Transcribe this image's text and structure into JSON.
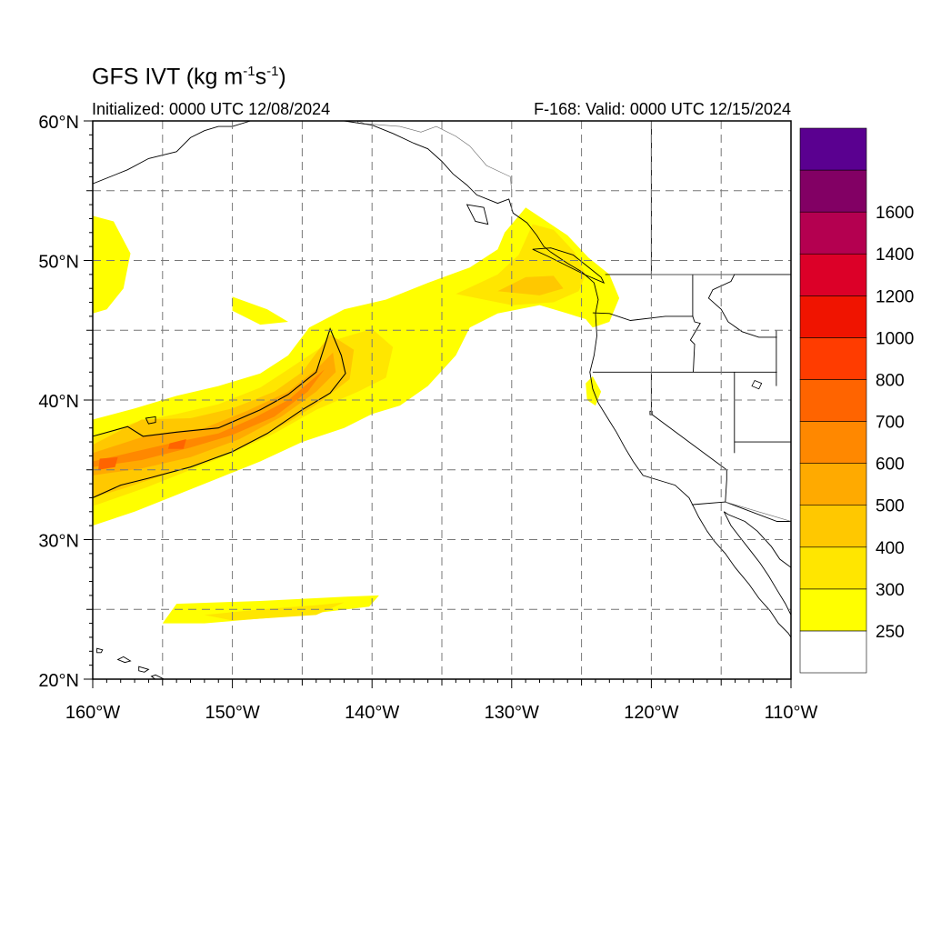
{
  "title": {
    "prefix": "GFS IVT (kg m",
    "sup1": "-1",
    "mid": "s",
    "sup2": "-1",
    "suffix": ")"
  },
  "initialized_label": "Initialized: 0000 UTC 12/08/2024",
  "valid_label": "F-168: Valid: 0000 UTC 12/15/2024",
  "map": {
    "lon_range": [
      -160,
      -110
    ],
    "lat_range": [
      20,
      60
    ],
    "lon_ticks": [
      {
        "value": -160,
        "label": "160°W"
      },
      {
        "value": -150,
        "label": "150°W"
      },
      {
        "value": -140,
        "label": "140°W"
      },
      {
        "value": -130,
        "label": "130°W"
      },
      {
        "value": -120,
        "label": "120°W"
      },
      {
        "value": -110,
        "label": "110°W"
      }
    ],
    "lat_ticks": [
      {
        "value": 20,
        "label": "20°N"
      },
      {
        "value": 30,
        "label": "30°N"
      },
      {
        "value": 40,
        "label": "40°N"
      },
      {
        "value": 50,
        "label": "50°N"
      },
      {
        "value": 60,
        "label": "60°N"
      }
    ],
    "grid": "dashed every 5°",
    "land_fill": "#ffffff",
    "coastline_color": "#000000"
  },
  "colorbar": {
    "levels": [
      {
        "label": "250",
        "color": "#ffff00"
      },
      {
        "label": "300",
        "color": "#ffe600"
      },
      {
        "label": "400",
        "color": "#ffc800"
      },
      {
        "label": "500",
        "color": "#ffaa00"
      },
      {
        "label": "600",
        "color": "#ff8800"
      },
      {
        "label": "700",
        "color": "#ff6400"
      },
      {
        "label": "800",
        "color": "#ff3c00"
      },
      {
        "label": "1000",
        "color": "#f01400"
      },
      {
        "label": "1200",
        "color": "#dc0028"
      },
      {
        "label": "1400",
        "color": "#b40050"
      },
      {
        "label": "1600",
        "color": "#820064"
      },
      {
        "label": "",
        "color": "#5a0090"
      }
    ],
    "below_min_color": "#ffffff"
  },
  "ivt_regions": [
    {
      "level": "250",
      "lonlat": [
        [
          -160,
          38.6
        ],
        [
          -157,
          39.4
        ],
        [
          -154,
          40.3
        ],
        [
          -151,
          41.0
        ],
        [
          -148,
          41.9
        ],
        [
          -146,
          43.2
        ],
        [
          -144.5,
          45.2
        ],
        [
          -142,
          46.5
        ],
        [
          -139,
          47.2
        ],
        [
          -136,
          48.4
        ],
        [
          -133,
          49.5
        ],
        [
          -131,
          50.8
        ],
        [
          -130.5,
          52.0
        ],
        [
          -129,
          53.8
        ],
        [
          -127.5,
          52.8
        ],
        [
          -126,
          51.8
        ],
        [
          -124.5,
          50.2
        ],
        [
          -123,
          49.0
        ],
        [
          -122.3,
          47.3
        ],
        [
          -123,
          45.6
        ],
        [
          -124.2,
          45.2
        ],
        [
          -124.7,
          45.8
        ],
        [
          -126,
          46.2
        ],
        [
          -128,
          46.8
        ],
        [
          -131,
          46.2
        ],
        [
          -133,
          45.2
        ],
        [
          -134,
          43.2
        ],
        [
          -136,
          41.0
        ],
        [
          -138,
          39.6
        ],
        [
          -140,
          39.0
        ],
        [
          -142,
          38.0
        ],
        [
          -145,
          37.0
        ],
        [
          -148,
          35.6
        ],
        [
          -151,
          34.4
        ],
        [
          -154,
          33.2
        ],
        [
          -157,
          32.0
        ],
        [
          -160,
          31.0
        ]
      ]
    },
    {
      "level": "250",
      "lonlat": [
        [
          -160,
          53.2
        ],
        [
          -158.5,
          52.8
        ],
        [
          -157.3,
          50.5
        ],
        [
          -157.8,
          48.0
        ],
        [
          -159,
          46.5
        ],
        [
          -160,
          46.2
        ]
      ]
    },
    {
      "level": "250",
      "lonlat": [
        [
          -154,
          25.4
        ],
        [
          -148,
          25.6
        ],
        [
          -142,
          25.9
        ],
        [
          -139.5,
          26.0
        ],
        [
          -140.2,
          25.2
        ],
        [
          -146,
          24.5
        ],
        [
          -152,
          24.0
        ],
        [
          -155,
          24.0
        ]
      ]
    },
    {
      "level": "250",
      "lonlat": [
        [
          -150,
          47.4
        ],
        [
          -147.5,
          46.5
        ],
        [
          -146,
          45.6
        ],
        [
          -148,
          45.4
        ],
        [
          -150,
          46.4
        ]
      ]
    },
    {
      "level": "250",
      "lonlat": [
        [
          -124.2,
          41.7
        ],
        [
          -123.6,
          40.6
        ],
        [
          -124.0,
          39.6
        ],
        [
          -124.6,
          40.0
        ],
        [
          -124.7,
          41.2
        ]
      ]
    },
    {
      "level": "300",
      "lonlat": [
        [
          -160,
          37.3
        ],
        [
          -157,
          38.4
        ],
        [
          -154,
          39.0
        ],
        [
          -151,
          39.7
        ],
        [
          -148,
          40.9
        ],
        [
          -146,
          42.2
        ],
        [
          -143,
          44.2
        ],
        [
          -140,
          45.1
        ],
        [
          -138.5,
          43.8
        ],
        [
          -139.0,
          41.6
        ],
        [
          -141,
          40.6
        ],
        [
          -144,
          39.3
        ],
        [
          -147,
          37.6
        ],
        [
          -150,
          36.2
        ],
        [
          -153,
          35.0
        ],
        [
          -156,
          33.8
        ],
        [
          -160,
          32.4
        ]
      ]
    },
    {
      "level": "300",
      "lonlat": [
        [
          -134,
          47.6
        ],
        [
          -131,
          49.0
        ],
        [
          -129.5,
          50.4
        ],
        [
          -128.5,
          52.6
        ],
        [
          -127,
          52.2
        ],
        [
          -125.5,
          50.6
        ],
        [
          -124.7,
          49.0
        ],
        [
          -125.2,
          47.8
        ],
        [
          -127,
          47.0
        ],
        [
          -130,
          46.8
        ]
      ]
    },
    {
      "level": "300",
      "lonlat": [
        [
          -152,
          24.6
        ],
        [
          -148,
          25.0
        ],
        [
          -144,
          25.3
        ],
        [
          -142,
          25.5
        ],
        [
          -144,
          24.6
        ],
        [
          -150,
          24.2
        ]
      ]
    },
    {
      "level": "400",
      "lonlat": [
        [
          -160,
          36.8
        ],
        [
          -156.5,
          38.6
        ],
        [
          -153,
          38.7
        ],
        [
          -150,
          39.4
        ],
        [
          -147,
          40.6
        ],
        [
          -145,
          42.0
        ],
        [
          -143,
          44.7
        ],
        [
          -141.3,
          43.6
        ],
        [
          -141.6,
          41.5
        ],
        [
          -143.5,
          40.0
        ],
        [
          -146,
          38.4
        ],
        [
          -149,
          36.8
        ],
        [
          -152,
          35.6
        ],
        [
          -155,
          34.6
        ],
        [
          -158,
          33.6
        ],
        [
          -160,
          33.0
        ]
      ]
    },
    {
      "level": "400",
      "lonlat": [
        [
          -131,
          47.8
        ],
        [
          -129,
          48.8
        ],
        [
          -127,
          48.9
        ],
        [
          -126.3,
          48.0
        ],
        [
          -128,
          47.5
        ]
      ]
    },
    {
      "level": "500",
      "lonlat": [
        [
          -160,
          36.2
        ],
        [
          -156,
          37.5
        ],
        [
          -152,
          38.0
        ],
        [
          -149,
          39.2
        ],
        [
          -146,
          40.6
        ],
        [
          -144,
          42.2
        ],
        [
          -142.8,
          43.4
        ],
        [
          -142.6,
          42.0
        ],
        [
          -144,
          40.6
        ],
        [
          -146.5,
          38.8
        ],
        [
          -149.5,
          37.2
        ],
        [
          -153,
          35.9
        ],
        [
          -156.5,
          35.1
        ],
        [
          -160,
          34.6
        ]
      ]
    },
    {
      "level": "600",
      "lonlat": [
        [
          -160,
          35.6
        ],
        [
          -157,
          36.3
        ],
        [
          -154,
          37.0
        ],
        [
          -151,
          37.6
        ],
        [
          -148.5,
          38.7
        ],
        [
          -146,
          40.0
        ],
        [
          -144,
          41.7
        ],
        [
          -143.4,
          42.2
        ],
        [
          -144.6,
          40.6
        ],
        [
          -147,
          38.8
        ],
        [
          -150,
          37.5
        ],
        [
          -153,
          36.6
        ],
        [
          -156.5,
          35.7
        ],
        [
          -160,
          35.2
        ]
      ]
    },
    {
      "level": "700",
      "lonlat": [
        [
          -159.5,
          35.8
        ],
        [
          -158.2,
          35.9
        ],
        [
          -158.4,
          35.2
        ],
        [
          -159.6,
          35.0
        ]
      ]
    },
    {
      "level": "700",
      "lonlat": [
        [
          -154.5,
          36.9
        ],
        [
          -153.3,
          37.2
        ],
        [
          -153.5,
          36.5
        ],
        [
          -154.6,
          36.5
        ]
      ]
    }
  ],
  "contour_500": [
    [
      -160,
      37.4
    ],
    [
      -157.5,
      38.1
    ],
    [
      -156.4,
      37.4
    ],
    [
      -154,
      37.7
    ],
    [
      -151,
      38.0
    ],
    [
      -148,
      39.3
    ],
    [
      -146,
      40.4
    ],
    [
      -144,
      42.0
    ],
    [
      -143.0,
      45.1
    ],
    [
      -142.2,
      43.2
    ],
    [
      -141.9,
      41.9
    ],
    [
      -143,
      40.5
    ],
    [
      -145,
      39.3
    ],
    [
      -147.5,
      37.6
    ],
    [
      -150,
      36.3
    ],
    [
      -153,
      35.2
    ],
    [
      -156,
      34.4
    ],
    [
      -158,
      33.9
    ],
    [
      -160,
      33.0
    ]
  ],
  "coastline": [
    [
      [
        -160,
        55.5
      ],
      [
        -157.5,
        56.5
      ],
      [
        -156,
        57.3
      ],
      [
        -154,
        57.8
      ],
      [
        -153,
        58.8
      ],
      [
        -152,
        59.3
      ],
      [
        -151,
        59.6
      ],
      [
        -150,
        59.6
      ],
      [
        -148.7,
        60.0
      ]
    ],
    [
      [
        -147.5,
        60.0
      ],
      [
        -146,
        60.4
      ],
      [
        -144,
        60.0
      ],
      [
        -142,
        60.0
      ],
      [
        -140,
        59.7
      ],
      [
        -138.5,
        59.1
      ],
      [
        -137,
        58.4
      ],
      [
        -136,
        58.0
      ],
      [
        -135,
        57.1
      ],
      [
        -134.2,
        56.2
      ],
      [
        -133.2,
        55.4
      ],
      [
        -132.5,
        54.7
      ],
      [
        -131,
        54.1
      ],
      [
        -130.2,
        54.4
      ],
      [
        -129.9,
        53.4
      ],
      [
        -128.9,
        52.7
      ],
      [
        -128.2,
        51.8
      ],
      [
        -127.7,
        51.0
      ],
      [
        -127.2,
        50.6
      ],
      [
        -126,
        49.8
      ],
      [
        -125,
        49.2
      ],
      [
        -124.1,
        48.4
      ],
      [
        -123.8,
        47.2
      ],
      [
        -124.0,
        46.2
      ],
      [
        -123.9,
        44.6
      ],
      [
        -124.1,
        43.2
      ],
      [
        -124.4,
        42.0
      ],
      [
        -124.2,
        40.8
      ],
      [
        -123.8,
        39.8
      ],
      [
        -123.0,
        38.5
      ],
      [
        -122.5,
        37.7
      ],
      [
        -121.9,
        36.6
      ],
      [
        -121.3,
        35.6
      ],
      [
        -120.6,
        34.6
      ],
      [
        -119.3,
        34.2
      ],
      [
        -118.3,
        33.9
      ],
      [
        -117.3,
        33.0
      ],
      [
        -117.0,
        32.4
      ],
      [
        -116.6,
        31.6
      ],
      [
        -116.0,
        30.6
      ],
      [
        -115.5,
        29.9
      ],
      [
        -114.7,
        29.0
      ],
      [
        -114.0,
        28.0
      ],
      [
        -113.0,
        26.8
      ],
      [
        -112.3,
        25.8
      ],
      [
        -111.5,
        24.9
      ],
      [
        -110.9,
        24.0
      ],
      [
        -110.2,
        23.3
      ],
      [
        -110,
        23.0
      ]
    ],
    [
      [
        -114.8,
        32.0
      ],
      [
        -114.3,
        31.0
      ],
      [
        -113.6,
        30.1
      ],
      [
        -112.9,
        29.2
      ],
      [
        -112.2,
        28.3
      ],
      [
        -111.6,
        27.4
      ],
      [
        -111.0,
        26.4
      ],
      [
        -110.4,
        25.4
      ],
      [
        -110,
        24.6
      ]
    ],
    [
      [
        -110,
        28.0
      ],
      [
        -110.8,
        28.6
      ],
      [
        -111.4,
        29.5
      ],
      [
        -112.4,
        30.6
      ],
      [
        -113.3,
        31.3
      ],
      [
        -114.5,
        31.8
      ],
      [
        -114.8,
        32.0
      ]
    ]
  ],
  "islands": [
    [
      [
        -155.8,
        20.2
      ],
      [
        -155.0,
        19.6
      ],
      [
        -154.9,
        20.0
      ],
      [
        -155.5,
        20.3
      ]
    ],
    [
      [
        -156.7,
        20.9
      ],
      [
        -156.0,
        20.7
      ],
      [
        -156.3,
        20.5
      ],
      [
        -156.7,
        20.6
      ]
    ],
    [
      [
        -157.3,
        21.3
      ],
      [
        -157.8,
        21.6
      ],
      [
        -158.2,
        21.4
      ],
      [
        -157.7,
        21.2
      ]
    ],
    [
      [
        -159.7,
        22.2
      ],
      [
        -159.3,
        22.1
      ],
      [
        -159.4,
        21.9
      ],
      [
        -159.7,
        21.9
      ]
    ],
    [
      [
        -156.2,
        38.7
      ],
      [
        -155.5,
        38.8
      ],
      [
        -155.5,
        38.4
      ],
      [
        -156.0,
        38.3
      ]
    ],
    [
      [
        -133.2,
        54.0
      ],
      [
        -132.0,
        53.8
      ],
      [
        -131.7,
        52.6
      ],
      [
        -132.6,
        52.8
      ]
    ],
    [
      [
        -128.5,
        50.8
      ],
      [
        -127.4,
        50.3
      ],
      [
        -126.0,
        49.6
      ],
      [
        -124.8,
        49.0
      ],
      [
        -123.4,
        48.4
      ],
      [
        -123.6,
        48.8
      ],
      [
        -124.6,
        49.6
      ],
      [
        -125.6,
        50.4
      ],
      [
        -127.2,
        50.9
      ]
    ]
  ],
  "borders": [
    [
      [
        -141,
        60
      ],
      [
        -141,
        59.9
      ]
    ],
    [
      [
        -123.3,
        49.0
      ],
      [
        -95,
        49.0
      ]
    ],
    [
      [
        -120,
        60
      ],
      [
        -120,
        49
      ]
    ],
    [
      [
        -117.04,
        49.0
      ],
      [
        -117.04,
        46.0
      ],
      [
        -116.9,
        45.6
      ],
      [
        -116.5,
        45.5
      ],
      [
        -117.2,
        44.3
      ],
      [
        -116.9,
        44.0
      ],
      [
        -117.0,
        42.0
      ]
    ],
    [
      [
        -124.2,
        46.25
      ],
      [
        -123.0,
        46.2
      ],
      [
        -121.5,
        45.7
      ],
      [
        -119.0,
        46.0
      ],
      [
        -117.0,
        46.0
      ]
    ],
    [
      [
        -124.2,
        42.0
      ],
      [
        -111.0,
        42.0
      ]
    ],
    [
      [
        -120.0,
        42.0
      ],
      [
        -120.0,
        39.0
      ],
      [
        -114.6,
        35.0
      ],
      [
        -114.6,
        34.3
      ],
      [
        -114.7,
        32.7
      ]
    ],
    [
      [
        -117.1,
        32.5
      ],
      [
        -114.7,
        32.7
      ],
      [
        -111.0,
        31.3
      ],
      [
        -108.2,
        31.3
      ]
    ],
    [
      [
        -114.05,
        49.0
      ],
      [
        -114.3,
        48.5
      ],
      [
        -115.6,
        47.9
      ],
      [
        -115.9,
        47.3
      ],
      [
        -115.0,
        46.5
      ],
      [
        -114.5,
        45.6
      ],
      [
        -113.5,
        44.9
      ],
      [
        -112.3,
        44.5
      ],
      [
        -111.0,
        44.5
      ]
    ],
    [
      [
        -111.05,
        45.0
      ],
      [
        -111.05,
        41.0
      ]
    ],
    [
      [
        -114.05,
        42.0
      ],
      [
        -114.05,
        37.0
      ],
      [
        -114.05,
        36.2
      ]
    ],
    [
      [
        -114.05,
        37.0
      ],
      [
        -109.0,
        37.0
      ]
    ]
  ],
  "thin_borders": [
    [
      [
        -141,
        60
      ],
      [
        -140.5,
        59.8
      ],
      [
        -138,
        59.6
      ],
      [
        -136.5,
        59.2
      ],
      [
        -135.4,
        59.6
      ],
      [
        -134,
        58.9
      ],
      [
        -133,
        58.2
      ],
      [
        -131.8,
        56.8
      ],
      [
        -130.1,
        56.0
      ],
      [
        -130.0,
        55.0
      ]
    ],
    [
      [
        -120,
        49.0
      ],
      [
        -114.1,
        49.0
      ]
    ],
    [
      [
        -114.7,
        32.7
      ],
      [
        -110.0,
        31.3
      ]
    ]
  ],
  "lakes": [
    [
      [
        -112.6,
        41.4
      ],
      [
        -112.1,
        41.2
      ],
      [
        -112.3,
        40.8
      ],
      [
        -112.8,
        41.0
      ]
    ],
    [
      [
        -120.1,
        39.2
      ],
      [
        -119.95,
        39.2
      ],
      [
        -119.95,
        38.95
      ],
      [
        -120.1,
        38.95
      ]
    ]
  ]
}
